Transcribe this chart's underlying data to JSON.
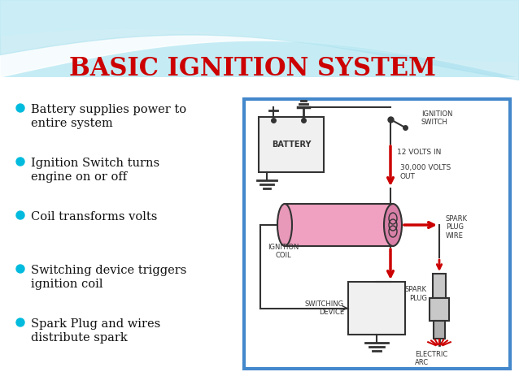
{
  "title": "BASIC IGNITION SYSTEM",
  "title_color": "#CC0000",
  "title_fontsize": 22,
  "bullet_points": [
    "Battery supplies power to\nentire system",
    "Ignition Switch turns\nengine on or off",
    "Coil transforms volts",
    "Switching device triggers\nignition coil",
    "Spark Plug and wires\ndistribute spark"
  ],
  "bullet_color": "#00BBDD",
  "bullet_text_color": "#111111",
  "bullet_fontsize": 10.5,
  "diagram_box_color": "#4488CC",
  "wave_color1": "#7DD8E8",
  "wave_color2": "#AADDEE",
  "wave_color3": "#C8EEF5",
  "bg_color": "#EAFAFF",
  "white": "#FFFFFF",
  "dark": "#333333",
  "red": "#CC0000",
  "pink": "#F0A0C0",
  "pink_dark": "#D880A8",
  "gray": "#C8C8C8",
  "light_gray": "#F0F0F0"
}
